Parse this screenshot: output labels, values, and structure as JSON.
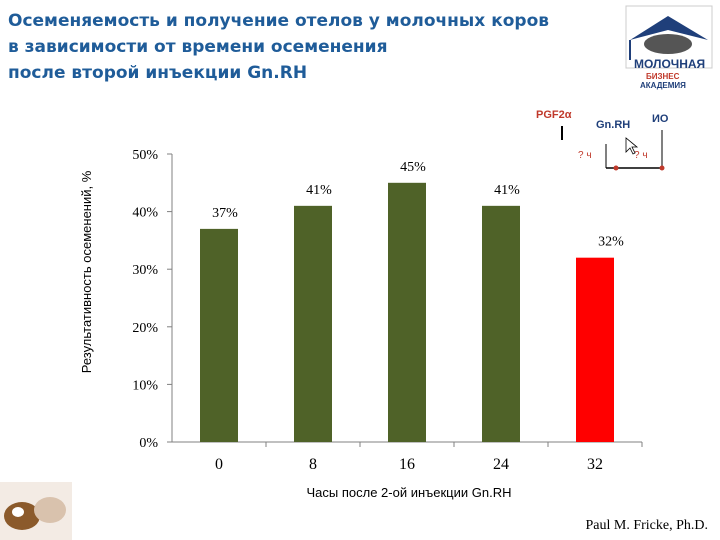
{
  "slide": {
    "title_lines": [
      "Осеменяемость и получение отелов у молочных коров",
      "в зависимости от времени осеменения",
      "после второй инъекции Gn.RH"
    ],
    "author": "Paul M. Fricke, Ph.D."
  },
  "logo": {
    "line1": "МОЛОЧНАЯ",
    "line2": "БИЗНЕС",
    "line3": "АКАДЕМИЯ"
  },
  "inset": {
    "pgf_label": "PGF2α",
    "gnrh_label": "Gn.RH",
    "ai_label": "ИО",
    "t1_label": "? ч",
    "t2_label": "? ч"
  },
  "chart_data": {
    "type": "bar",
    "categories": [
      "0",
      "8",
      "16",
      "24",
      "32"
    ],
    "values": [
      37,
      41,
      45,
      41,
      32
    ],
    "data_labels": [
      "37%",
      "41%",
      "45%",
      "41%",
      "32%"
    ],
    "colors": [
      "#4f6228",
      "#4f6228",
      "#4f6228",
      "#4f6228",
      "#ff0000"
    ],
    "xlabel": "Часы после 2-ой инъекции Gn.RH",
    "ylabel": "Результативность осеменений, %",
    "ylim": [
      0,
      50
    ],
    "yticks": [
      "0%",
      "10%",
      "20%",
      "30%",
      "40%",
      "50%"
    ],
    "grid": false,
    "legend": "none"
  }
}
